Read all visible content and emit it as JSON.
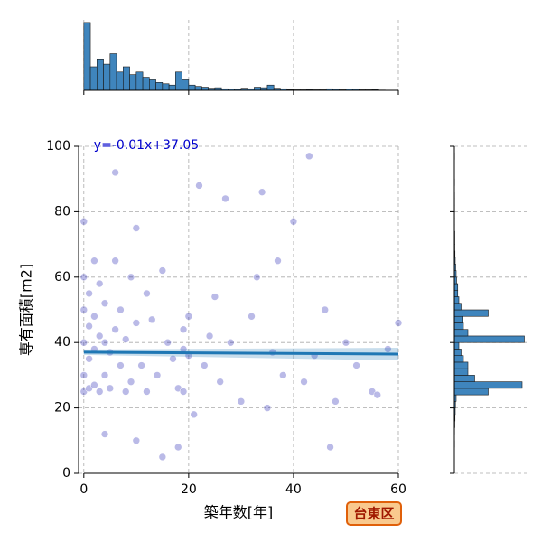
{
  "chart_data": [
    {
      "type": "scatter",
      "xlabel": "築年数[年]",
      "ylabel": "専有面積[m2]",
      "annotation": "y=-0.01x+37.05",
      "regression": {
        "slope": -0.01,
        "intercept": 37.05,
        "color": "#1f77b4"
      },
      "color": "#1c1cb0",
      "xlim": [
        -1,
        60
      ],
      "ylim": [
        0,
        100
      ],
      "xticks": [
        0,
        20,
        40,
        60
      ],
      "yticks": [
        0,
        20,
        40,
        60,
        80,
        100
      ],
      "grid": true,
      "x": [
        0,
        0,
        0,
        0,
        0,
        0,
        1,
        1,
        1,
        1,
        2,
        2,
        2,
        2,
        3,
        3,
        3,
        4,
        4,
        4,
        5,
        5,
        6,
        6,
        6,
        7,
        7,
        8,
        8,
        9,
        9,
        10,
        10,
        11,
        12,
        12,
        13,
        14,
        15,
        16,
        17,
        18,
        19,
        19,
        19,
        20,
        20,
        21,
        22,
        23,
        25,
        26,
        28,
        30,
        32,
        34,
        35,
        36,
        37,
        38,
        40,
        42,
        43,
        44,
        46,
        48,
        50,
        52,
        55,
        58,
        60,
        4,
        10,
        18,
        15,
        47,
        27,
        33,
        56,
        24
      ],
      "values": [
        25,
        30,
        40,
        50,
        60,
        77,
        26,
        35,
        45,
        55,
        27,
        38,
        48,
        65,
        25,
        42,
        58,
        30,
        40,
        52,
        26,
        37,
        92,
        44,
        65,
        33,
        50,
        25,
        41,
        60,
        28,
        46,
        75,
        33,
        55,
        25,
        47,
        30,
        62,
        40,
        35,
        26,
        38,
        44,
        25,
        36,
        48,
        18,
        88,
        33,
        54,
        28,
        40,
        22,
        48,
        86,
        20,
        37,
        65,
        30,
        77,
        28,
        97,
        36,
        50,
        22,
        40,
        33,
        25,
        38,
        46,
        12,
        10,
        8,
        5,
        8,
        84,
        60,
        24,
        42
      ]
    },
    {
      "type": "histogram",
      "orientation": "vertical",
      "color": "#3f85bd",
      "bins": [
        0,
        1.25,
        2.5,
        3.75,
        5,
        6.25,
        7.5,
        8.75,
        10,
        11.25,
        12.5,
        13.75,
        15,
        16.25,
        17.5,
        18.75,
        20,
        21.25,
        22.5,
        23.75,
        25,
        26.25,
        27.5,
        28.75,
        30,
        31.25,
        32.5,
        33.75,
        35,
        36.25,
        37.5,
        38.75,
        40,
        41.25,
        42.5,
        43.75,
        45,
        46.25,
        47.5,
        48.75,
        50,
        51.25,
        52.5,
        53.75,
        55,
        56.25,
        57.5
      ],
      "values": [
        260,
        90,
        120,
        100,
        140,
        70,
        90,
        60,
        70,
        50,
        40,
        30,
        25,
        20,
        70,
        40,
        20,
        15,
        12,
        8,
        10,
        6,
        5,
        4,
        8,
        6,
        12,
        10,
        20,
        8,
        6,
        3,
        2,
        2,
        3,
        2,
        2,
        6,
        4,
        2,
        5,
        4,
        2,
        2,
        3,
        1
      ],
      "xlim": [
        -1,
        60
      ],
      "ylim": [
        0,
        270
      ],
      "xticks": [
        0,
        20,
        40,
        60
      ],
      "grid": true
    },
    {
      "type": "histogram",
      "orientation": "horizontal",
      "color": "#3f85bd",
      "bins": [
        0,
        2,
        4,
        6,
        8,
        10,
        12,
        14,
        16,
        18,
        20,
        22,
        24,
        26,
        28,
        30,
        32,
        34,
        36,
        38,
        40,
        42,
        44,
        46,
        48,
        50,
        52,
        54,
        56,
        58,
        60,
        62,
        64,
        66,
        68,
        70,
        72,
        74,
        76,
        78,
        80,
        82,
        84,
        86,
        88,
        90,
        92,
        94,
        96,
        98,
        100
      ],
      "values": [
        0,
        0,
        0,
        0,
        1,
        0,
        1,
        2,
        3,
        4,
        5,
        8,
        150,
        300,
        90,
        60,
        60,
        40,
        30,
        20,
        310,
        60,
        40,
        35,
        150,
        30,
        20,
        15,
        15,
        10,
        8,
        6,
        4,
        3,
        2,
        2,
        2,
        1,
        1,
        1,
        1,
        1,
        1,
        0,
        1,
        0,
        0,
        0,
        1,
        0
      ],
      "xlim": [
        0,
        320
      ],
      "ylim": [
        0,
        100
      ],
      "yticks": [
        0,
        20,
        40,
        60,
        80,
        100
      ],
      "grid": true
    }
  ],
  "badge": "台東区"
}
